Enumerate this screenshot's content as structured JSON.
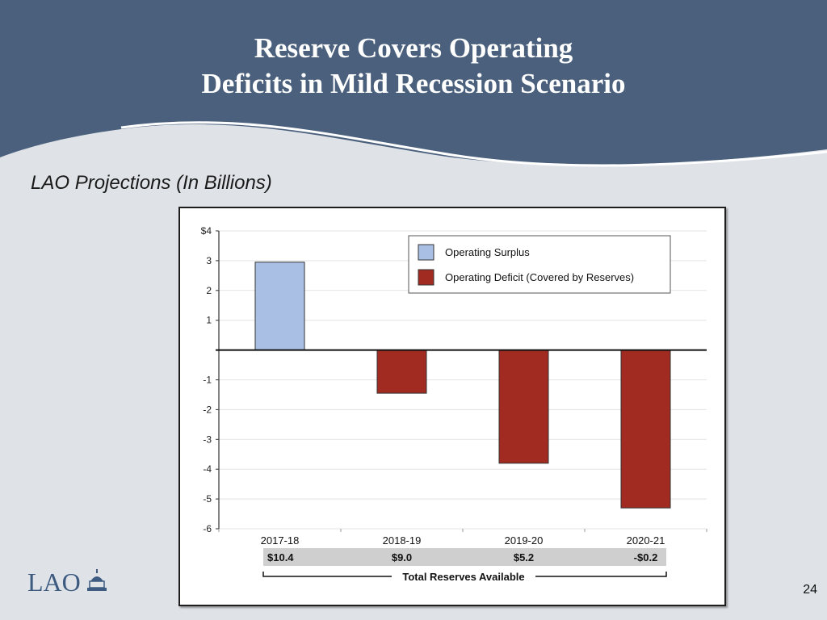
{
  "slide": {
    "title_line1": "Reserve Covers Operating",
    "title_line2": "Deficits in Mild Recession Scenario",
    "subtitle": "LAO Projections (In Billions)",
    "page_number": "24",
    "logo_text": "LAO"
  },
  "colors": {
    "header": "#4a607d",
    "surplus": "#a9c0e4",
    "deficit": "#a12b20",
    "reserves_band": "#cfcfcf"
  },
  "chart_data": {
    "type": "bar",
    "categories": [
      "2017-18",
      "2018-19",
      "2019-20",
      "2020-21"
    ],
    "values": [
      2.95,
      -1.45,
      -3.8,
      -5.3
    ],
    "ylim": [
      -6,
      4
    ],
    "yticks": [
      4,
      3,
      2,
      1,
      0,
      -1,
      -2,
      -3,
      -4,
      -5,
      -6
    ],
    "ytick_labels": [
      "$4",
      "3",
      "2",
      "1",
      "",
      "-1",
      "-2",
      "-3",
      "-4",
      "-5",
      "-6"
    ],
    "grid": true,
    "legend_position": "top-right",
    "legend": [
      {
        "name": "Operating Surplus",
        "color": "#a9c0e4"
      },
      {
        "name": "Operating Deficit (Covered by Reserves)",
        "color": "#a12b20"
      }
    ],
    "reserves": {
      "label": "Total Reserves Available",
      "values": [
        "$10.4",
        "$9.0",
        "$5.2",
        "-$0.2"
      ]
    }
  }
}
